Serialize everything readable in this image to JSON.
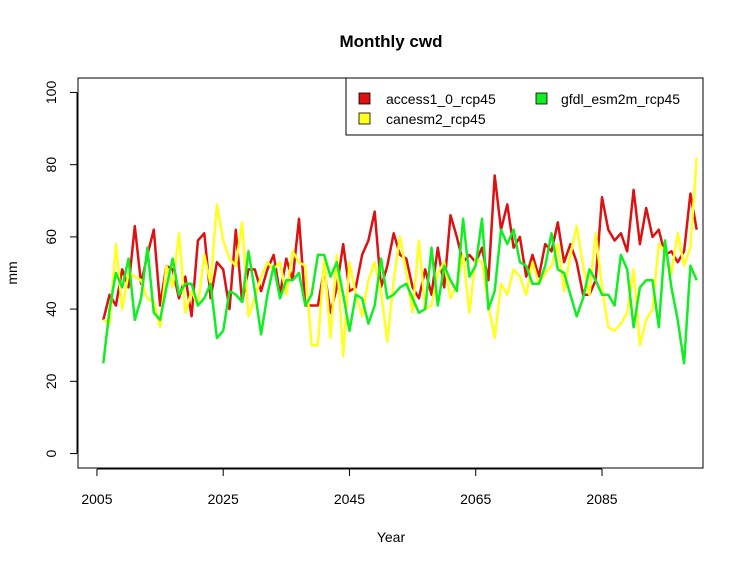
{
  "chart_data": {
    "type": "line",
    "title": "Monthly  cwd",
    "xlabel": "Year",
    "ylabel": "mm",
    "xlim": [
      2002,
      2101
    ],
    "ylim": [
      -4,
      104
    ],
    "x_ticks": [
      2005,
      2025,
      2045,
      2065,
      2085
    ],
    "y_ticks": [
      0,
      20,
      40,
      60,
      80,
      100
    ],
    "grid": false,
    "legend_position": "top-right",
    "x": [
      2006,
      2007,
      2008,
      2009,
      2010,
      2011,
      2012,
      2013,
      2014,
      2015,
      2016,
      2017,
      2018,
      2019,
      2020,
      2021,
      2022,
      2023,
      2024,
      2025,
      2026,
      2027,
      2028,
      2029,
      2030,
      2031,
      2032,
      2033,
      2034,
      2035,
      2036,
      2037,
      2038,
      2039,
      2040,
      2041,
      2042,
      2043,
      2044,
      2045,
      2046,
      2047,
      2048,
      2049,
      2050,
      2051,
      2052,
      2053,
      2054,
      2055,
      2056,
      2057,
      2058,
      2059,
      2060,
      2061,
      2062,
      2063,
      2064,
      2065,
      2066,
      2067,
      2068,
      2069,
      2070,
      2071,
      2072,
      2073,
      2074,
      2075,
      2076,
      2077,
      2078,
      2079,
      2080,
      2081,
      2082,
      2083,
      2084,
      2085,
      2086,
      2087,
      2088,
      2089,
      2090,
      2091,
      2092,
      2093,
      2094,
      2095,
      2096,
      2097,
      2098,
      2099,
      2100
    ],
    "series": [
      {
        "name": "access1_0_rcp45",
        "color": "#dd1111",
        "values": [
          37,
          44,
          41,
          51,
          46,
          63,
          47,
          55,
          62,
          41,
          52,
          51,
          43,
          49,
          38,
          59,
          61,
          43,
          53,
          51,
          40,
          62,
          42,
          51,
          51,
          45,
          51,
          55,
          44,
          54,
          48,
          65,
          41,
          41,
          41,
          51,
          39,
          46,
          58,
          45,
          46,
          55,
          59,
          67,
          46,
          52,
          61,
          55,
          54,
          46,
          43,
          51,
          44,
          57,
          46,
          66,
          60,
          53,
          55,
          53,
          57,
          48,
          77,
          62,
          69,
          57,
          60,
          49,
          55,
          49,
          58,
          56,
          64,
          53,
          58,
          53,
          44,
          44,
          48,
          71,
          62,
          59,
          61,
          56,
          73,
          58,
          68,
          60,
          62,
          55,
          56,
          53,
          56,
          72,
          62
        ]
      },
      {
        "name": "canesm2_rcp45",
        "color": "#ffff22",
        "values": [
          37,
          36,
          58,
          40,
          50,
          49,
          48,
          43,
          42,
          35,
          52,
          46,
          61,
          39,
          45,
          41,
          55,
          47,
          69,
          59,
          54,
          52,
          64,
          38,
          43,
          49,
          53,
          51,
          53,
          44,
          56,
          53,
          52,
          30,
          30,
          54,
          32,
          55,
          27,
          53,
          44,
          38,
          48,
          53,
          45,
          31,
          48,
          60,
          50,
          39,
          59,
          40,
          41,
          50,
          53,
          43,
          47,
          55,
          39,
          54,
          53,
          41,
          32,
          47,
          44,
          51,
          49,
          44,
          53,
          47,
          50,
          52,
          58,
          45,
          55,
          63,
          52,
          44,
          61,
          46,
          35,
          34,
          36,
          39,
          51,
          30,
          37,
          40,
          58,
          56,
          50,
          61,
          52,
          57,
          82
        ]
      },
      {
        "name": "gfdl_esm2m_rcp45",
        "color": "#11ee22",
        "values": [
          25,
          40,
          50,
          46,
          54,
          37,
          43,
          57,
          39,
          37,
          46,
          54,
          44,
          47,
          47,
          41,
          43,
          47,
          32,
          34,
          45,
          44,
          42,
          56,
          45,
          33,
          44,
          52,
          43,
          48,
          48,
          50,
          41,
          44,
          55,
          55,
          49,
          53,
          44,
          34,
          44,
          43,
          36,
          41,
          54,
          43,
          44,
          46,
          47,
          43,
          39,
          40,
          57,
          41,
          52,
          48,
          45,
          65,
          49,
          52,
          65,
          40,
          45,
          62,
          58,
          62,
          53,
          52,
          47,
          47,
          52,
          61,
          51,
          50,
          44,
          38,
          43,
          51,
          48,
          44,
          44,
          41,
          55,
          51,
          35,
          46,
          48,
          48,
          35,
          59,
          46,
          37,
          25,
          52,
          48
        ]
      }
    ]
  }
}
